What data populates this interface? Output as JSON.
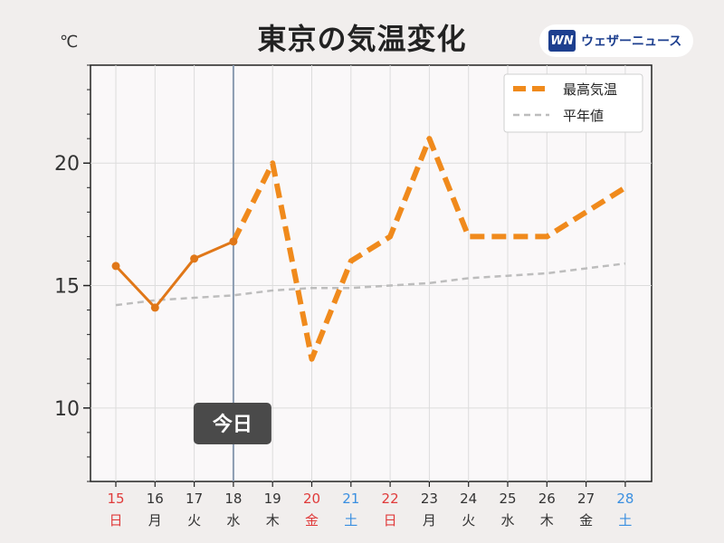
{
  "title": "東京の気温変化",
  "unit": "℃",
  "brand": {
    "logo_text": "WN",
    "name": "ウェザーニュース"
  },
  "today_label": "今日",
  "colors": {
    "forecast": "#f08a1c",
    "observed": "#e07718",
    "normal": "#bdbdbd",
    "weekday": "#333333",
    "saturday": "#3a8fe0",
    "holiday": "#e03a3a",
    "today_line": "#8a9bb0",
    "plot_bg": "#faf8f9",
    "grid": "#dcdcdc"
  },
  "chart_data": {
    "type": "line",
    "title": "東京の気温変化",
    "xlabel": "",
    "ylabel": "℃",
    "ylim": [
      7,
      24
    ],
    "yticks": [
      10,
      15,
      20
    ],
    "grid": true,
    "legend_position": "top-right",
    "today_index": 3,
    "categories": [
      {
        "day": "15",
        "dow": "日",
        "kind": "holiday"
      },
      {
        "day": "16",
        "dow": "月",
        "kind": "weekday"
      },
      {
        "day": "17",
        "dow": "火",
        "kind": "weekday"
      },
      {
        "day": "18",
        "dow": "水",
        "kind": "weekday"
      },
      {
        "day": "19",
        "dow": "木",
        "kind": "weekday"
      },
      {
        "day": "20",
        "dow": "金",
        "kind": "holiday"
      },
      {
        "day": "21",
        "dow": "土",
        "kind": "saturday"
      },
      {
        "day": "22",
        "dow": "日",
        "kind": "holiday"
      },
      {
        "day": "23",
        "dow": "月",
        "kind": "weekday"
      },
      {
        "day": "24",
        "dow": "火",
        "kind": "weekday"
      },
      {
        "day": "25",
        "dow": "水",
        "kind": "weekday"
      },
      {
        "day": "26",
        "dow": "木",
        "kind": "weekday"
      },
      {
        "day": "27",
        "dow": "金",
        "kind": "weekday"
      },
      {
        "day": "28",
        "dow": "土",
        "kind": "saturday"
      }
    ],
    "series": [
      {
        "name": "最高気温",
        "values": [
          15.8,
          14.1,
          16.1,
          16.8,
          20.0,
          12.0,
          16.0,
          17.0,
          21.0,
          17.0,
          17.0,
          17.0,
          18.0,
          19.0
        ]
      },
      {
        "name": "平年値",
        "values": [
          14.2,
          14.4,
          14.5,
          14.6,
          14.8,
          14.9,
          14.9,
          15.0,
          15.1,
          15.3,
          15.4,
          15.5,
          15.7,
          15.9
        ]
      }
    ]
  }
}
